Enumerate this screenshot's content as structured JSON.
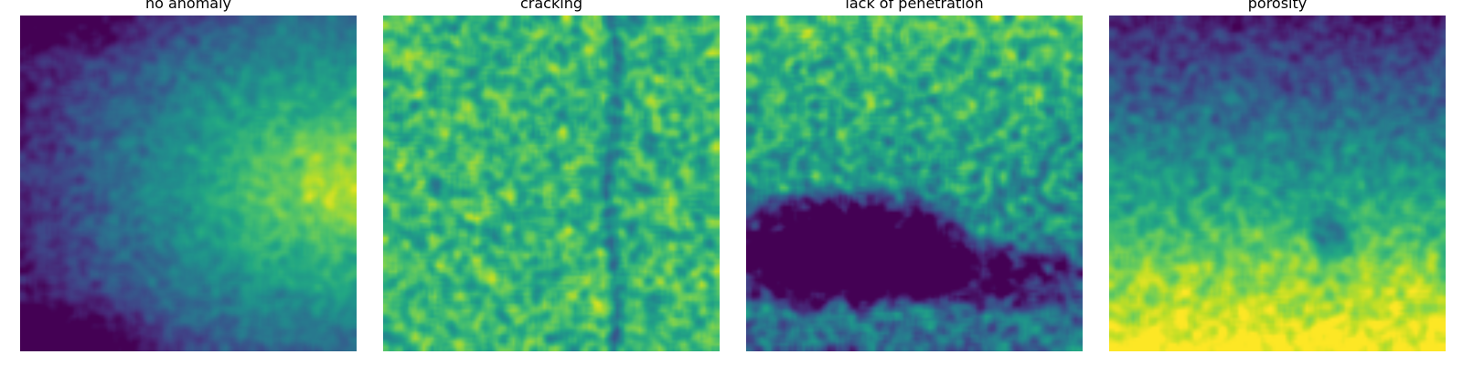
{
  "colormap": "viridis",
  "panels": [
    {
      "title": "no anomaly"
    },
    {
      "title": "cracking"
    },
    {
      "title": "lack of penetration"
    },
    {
      "title": "porosity"
    }
  ]
}
